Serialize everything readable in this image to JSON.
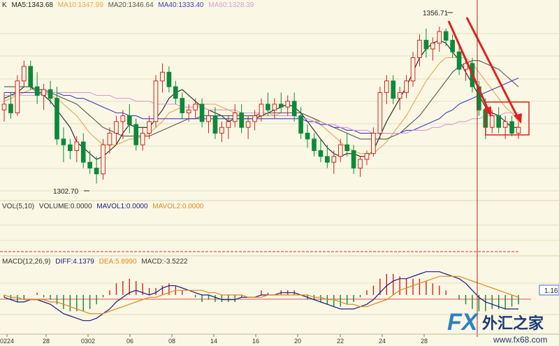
{
  "header": {
    "prefix": "K",
    "ma": [
      {
        "label": "MA5:1343.68",
        "color": "#1f1f1f"
      },
      {
        "label": "MA10:1347.99",
        "color": "#e8a54a"
      },
      {
        "label": "MA20:1346.64",
        "color": "#555555"
      },
      {
        "label": "MA40:1333.40",
        "color": "#3a3ad0"
      },
      {
        "label": "MA60:1328.39",
        "color": "#d79ad7"
      }
    ]
  },
  "price_annotations": {
    "high": "1356.71",
    "low": "1302.70"
  },
  "volume_header": [
    {
      "label": "VOL(5,10)",
      "color": "#333333"
    },
    {
      "label": "VOLUME:0.0000",
      "color": "#333333"
    },
    {
      "label": "MAVOL1:0.0000",
      "color": "#1a1a80"
    },
    {
      "label": "MAVOL2:0.0000",
      "color": "#e08a20"
    }
  ],
  "macd_header": [
    {
      "label": "MACD(12,26,9)",
      "color": "#333333"
    },
    {
      "label": "DIFF:4.1379",
      "color": "#1a1a80"
    },
    {
      "label": "DEA:5.8990",
      "color": "#e08a20"
    },
    {
      "label": "MACD:-3.5222",
      "color": "#333333"
    }
  ],
  "macd_value_tag": "1.16",
  "x_ticks": [
    "0224",
    "28",
    "0302",
    "06",
    "08",
    "14",
    "16",
    "20",
    "22",
    "24",
    "28"
  ],
  "watermark": {
    "fx": "FX",
    "cn": "外汇之家",
    "url": "www.fx68.com"
  },
  "colors": {
    "up": "#d42020",
    "down": "#0a8a3a",
    "arrow": "#e02020",
    "cursor": "#b02020",
    "bg": "#faf8e4"
  },
  "chart_data": {
    "type": "candlestick",
    "ylim": [
      1298,
      1362
    ],
    "candles": [
      {
        "o": 1328,
        "h": 1334,
        "l": 1324,
        "c": 1330
      },
      {
        "o": 1330,
        "h": 1334,
        "l": 1325,
        "c": 1327
      },
      {
        "o": 1327,
        "h": 1340,
        "l": 1326,
        "c": 1338
      },
      {
        "o": 1338,
        "h": 1345,
        "l": 1336,
        "c": 1343
      },
      {
        "o": 1343,
        "h": 1345,
        "l": 1335,
        "c": 1336
      },
      {
        "o": 1336,
        "h": 1341,
        "l": 1330,
        "c": 1333
      },
      {
        "o": 1333,
        "h": 1337,
        "l": 1328,
        "c": 1335
      },
      {
        "o": 1335,
        "h": 1338,
        "l": 1330,
        "c": 1332
      },
      {
        "o": 1332,
        "h": 1336,
        "l": 1316,
        "c": 1318
      },
      {
        "o": 1318,
        "h": 1322,
        "l": 1310,
        "c": 1316
      },
      {
        "o": 1316,
        "h": 1318,
        "l": 1311,
        "c": 1314
      },
      {
        "o": 1314,
        "h": 1319,
        "l": 1310,
        "c": 1317
      },
      {
        "o": 1317,
        "h": 1320,
        "l": 1308,
        "c": 1310
      },
      {
        "o": 1310,
        "h": 1314,
        "l": 1306,
        "c": 1308
      },
      {
        "o": 1308,
        "h": 1312,
        "l": 1302.7,
        "c": 1306
      },
      {
        "o": 1306,
        "h": 1318,
        "l": 1304,
        "c": 1316
      },
      {
        "o": 1316,
        "h": 1322,
        "l": 1313,
        "c": 1320
      },
      {
        "o": 1320,
        "h": 1326,
        "l": 1316,
        "c": 1324
      },
      {
        "o": 1324,
        "h": 1328,
        "l": 1318,
        "c": 1326
      },
      {
        "o": 1326,
        "h": 1330,
        "l": 1320,
        "c": 1323
      },
      {
        "o": 1323,
        "h": 1325,
        "l": 1314,
        "c": 1316
      },
      {
        "o": 1316,
        "h": 1322,
        "l": 1314,
        "c": 1320
      },
      {
        "o": 1320,
        "h": 1326,
        "l": 1318,
        "c": 1324
      },
      {
        "o": 1324,
        "h": 1340,
        "l": 1322,
        "c": 1338
      },
      {
        "o": 1338,
        "h": 1344,
        "l": 1334,
        "c": 1341
      },
      {
        "o": 1341,
        "h": 1343,
        "l": 1334,
        "c": 1336
      },
      {
        "o": 1336,
        "h": 1338,
        "l": 1330,
        "c": 1332
      },
      {
        "o": 1332,
        "h": 1334,
        "l": 1325,
        "c": 1327
      },
      {
        "o": 1327,
        "h": 1330,
        "l": 1324,
        "c": 1328
      },
      {
        "o": 1328,
        "h": 1332,
        "l": 1325,
        "c": 1330
      },
      {
        "o": 1330,
        "h": 1332,
        "l": 1322,
        "c": 1324
      },
      {
        "o": 1324,
        "h": 1328,
        "l": 1320,
        "c": 1326
      },
      {
        "o": 1326,
        "h": 1329,
        "l": 1318,
        "c": 1320
      },
      {
        "o": 1320,
        "h": 1324,
        "l": 1317,
        "c": 1322
      },
      {
        "o": 1322,
        "h": 1326,
        "l": 1318,
        "c": 1324
      },
      {
        "o": 1324,
        "h": 1330,
        "l": 1322,
        "c": 1327
      },
      {
        "o": 1327,
        "h": 1330,
        "l": 1320,
        "c": 1322
      },
      {
        "o": 1322,
        "h": 1326,
        "l": 1318,
        "c": 1324
      },
      {
        "o": 1324,
        "h": 1328,
        "l": 1321,
        "c": 1326
      },
      {
        "o": 1326,
        "h": 1332,
        "l": 1324,
        "c": 1330
      },
      {
        "o": 1330,
        "h": 1334,
        "l": 1326,
        "c": 1328
      },
      {
        "o": 1328,
        "h": 1332,
        "l": 1325,
        "c": 1330
      },
      {
        "o": 1330,
        "h": 1334,
        "l": 1327,
        "c": 1329
      },
      {
        "o": 1329,
        "h": 1333,
        "l": 1326,
        "c": 1331
      },
      {
        "o": 1331,
        "h": 1334,
        "l": 1324,
        "c": 1326
      },
      {
        "o": 1326,
        "h": 1329,
        "l": 1318,
        "c": 1320
      },
      {
        "o": 1320,
        "h": 1323,
        "l": 1315,
        "c": 1318
      },
      {
        "o": 1318,
        "h": 1320,
        "l": 1312,
        "c": 1314
      },
      {
        "o": 1314,
        "h": 1318,
        "l": 1310,
        "c": 1312
      },
      {
        "o": 1312,
        "h": 1316,
        "l": 1308,
        "c": 1310
      },
      {
        "o": 1310,
        "h": 1314,
        "l": 1306,
        "c": 1312
      },
      {
        "o": 1312,
        "h": 1318,
        "l": 1310,
        "c": 1316
      },
      {
        "o": 1316,
        "h": 1320,
        "l": 1312,
        "c": 1314
      },
      {
        "o": 1314,
        "h": 1316,
        "l": 1306,
        "c": 1308
      },
      {
        "o": 1308,
        "h": 1312,
        "l": 1305,
        "c": 1311
      },
      {
        "o": 1311,
        "h": 1314,
        "l": 1309,
        "c": 1313
      },
      {
        "o": 1313,
        "h": 1322,
        "l": 1312,
        "c": 1320
      },
      {
        "o": 1320,
        "h": 1336,
        "l": 1318,
        "c": 1334
      },
      {
        "o": 1334,
        "h": 1340,
        "l": 1330,
        "c": 1338
      },
      {
        "o": 1338,
        "h": 1340,
        "l": 1330,
        "c": 1332
      },
      {
        "o": 1332,
        "h": 1336,
        "l": 1328,
        "c": 1334
      },
      {
        "o": 1334,
        "h": 1340,
        "l": 1332,
        "c": 1338
      },
      {
        "o": 1338,
        "h": 1348,
        "l": 1336,
        "c": 1346
      },
      {
        "o": 1346,
        "h": 1354,
        "l": 1343,
        "c": 1352
      },
      {
        "o": 1352,
        "h": 1356,
        "l": 1346,
        "c": 1349
      },
      {
        "o": 1349,
        "h": 1353,
        "l": 1345,
        "c": 1351
      },
      {
        "o": 1351,
        "h": 1356.71,
        "l": 1348,
        "c": 1355
      },
      {
        "o": 1355,
        "h": 1356,
        "l": 1350,
        "c": 1352
      },
      {
        "o": 1352,
        "h": 1354,
        "l": 1346,
        "c": 1348
      },
      {
        "o": 1348,
        "h": 1350,
        "l": 1340,
        "c": 1342
      },
      {
        "o": 1342,
        "h": 1346,
        "l": 1338,
        "c": 1344
      },
      {
        "o": 1344,
        "h": 1346,
        "l": 1334,
        "c": 1336
      },
      {
        "o": 1336,
        "h": 1338,
        "l": 1326,
        "c": 1328
      },
      {
        "o": 1328,
        "h": 1332,
        "l": 1318,
        "c": 1322
      },
      {
        "o": 1322,
        "h": 1328,
        "l": 1320,
        "c": 1326
      },
      {
        "o": 1326,
        "h": 1329,
        "l": 1320,
        "c": 1322
      },
      {
        "o": 1322,
        "h": 1326,
        "l": 1318,
        "c": 1324
      },
      {
        "o": 1324,
        "h": 1326,
        "l": 1319,
        "c": 1320
      },
      {
        "o": 1320,
        "h": 1324,
        "l": 1318,
        "c": 1322
      }
    ],
    "ma_lines": [
      {
        "name": "MA5",
        "color": "#1f1f1f",
        "values": [
          1332,
          1333,
          1334,
          1336,
          1336,
          1334,
          1333,
          1331,
          1328,
          1325,
          1322,
          1317,
          1315,
          1313,
          1311,
          1312,
          1314,
          1316,
          1320,
          1323,
          1322,
          1322,
          1322,
          1325,
          1328,
          1332,
          1334,
          1335,
          1333,
          1331,
          1329,
          1328,
          1327,
          1326,
          1324,
          1325,
          1325,
          1325,
          1325,
          1326,
          1327,
          1328,
          1329,
          1330,
          1329,
          1327,
          1324,
          1321,
          1318,
          1315,
          1313,
          1312,
          1313,
          1313,
          1312,
          1312,
          1314,
          1319,
          1324,
          1328,
          1332,
          1336,
          1341,
          1346,
          1349,
          1351,
          1352,
          1351,
          1348,
          1345,
          1341,
          1337,
          1333,
          1329,
          1327,
          1326,
          1324,
          1322,
          1322
        ]
      },
      {
        "name": "MA10",
        "color": "#e8a54a",
        "values": [
          1331,
          1332,
          1333,
          1334,
          1335,
          1335,
          1334,
          1333,
          1332,
          1330,
          1328,
          1326,
          1323,
          1320,
          1318,
          1316,
          1316,
          1316,
          1317,
          1318,
          1318,
          1319,
          1320,
          1322,
          1324,
          1327,
          1328,
          1329,
          1329,
          1329,
          1330,
          1330,
          1330,
          1329,
          1328,
          1327,
          1326,
          1326,
          1326,
          1326,
          1326,
          1326,
          1327,
          1327,
          1327,
          1327,
          1326,
          1325,
          1323,
          1321,
          1319,
          1317,
          1315,
          1314,
          1313,
          1313,
          1313,
          1315,
          1317,
          1320,
          1323,
          1326,
          1330,
          1334,
          1338,
          1341,
          1344,
          1346,
          1346,
          1346,
          1346,
          1344,
          1341,
          1338,
          1335,
          1332,
          1329,
          1327,
          1324
        ]
      },
      {
        "name": "MA20",
        "color": "#555555",
        "values": [
          1336,
          1336,
          1336,
          1336,
          1336,
          1335,
          1335,
          1334,
          1333,
          1332,
          1331,
          1330,
          1328,
          1326,
          1324,
          1322,
          1321,
          1320,
          1319,
          1319,
          1319,
          1319,
          1319,
          1320,
          1321,
          1322,
          1323,
          1324,
          1325,
          1325,
          1326,
          1326,
          1326,
          1326,
          1326,
          1326,
          1326,
          1326,
          1326,
          1327,
          1327,
          1327,
          1327,
          1327,
          1327,
          1327,
          1326,
          1325,
          1324,
          1323,
          1322,
          1321,
          1320,
          1319,
          1318,
          1318,
          1318,
          1318,
          1318,
          1319,
          1320,
          1322,
          1324,
          1326,
          1329,
          1332,
          1335,
          1338,
          1341,
          1343,
          1344,
          1345,
          1345,
          1344,
          1343,
          1342,
          1340,
          1338,
          1336
        ]
      },
      {
        "name": "MA40",
        "color": "#3a3ad0",
        "values": [
          1334,
          1334,
          1334,
          1334,
          1334,
          1334,
          1334,
          1334,
          1334,
          1333,
          1333,
          1332,
          1332,
          1331,
          1330,
          1329,
          1328,
          1327,
          1327,
          1326,
          1326,
          1325,
          1325,
          1325,
          1325,
          1325,
          1325,
          1325,
          1325,
          1325,
          1325,
          1325,
          1325,
          1325,
          1325,
          1325,
          1325,
          1325,
          1325,
          1325,
          1325,
          1325,
          1325,
          1325,
          1325,
          1325,
          1324,
          1324,
          1323,
          1323,
          1322,
          1322,
          1321,
          1321,
          1320,
          1320,
          1320,
          1320,
          1320,
          1320,
          1320,
          1321,
          1321,
          1322,
          1323,
          1324,
          1325,
          1327,
          1328,
          1330,
          1331,
          1332,
          1333,
          1334,
          1335,
          1336,
          1337,
          1338,
          1339
        ]
      },
      {
        "name": "MA60",
        "color": "#d79ad7",
        "values": [
          1333,
          1333,
          1333,
          1333,
          1333,
          1333,
          1334,
          1334,
          1334,
          1334,
          1334,
          1334,
          1334,
          1334,
          1333,
          1333,
          1333,
          1332,
          1332,
          1332,
          1331,
          1331,
          1331,
          1330,
          1330,
          1330,
          1330,
          1329,
          1329,
          1329,
          1329,
          1328,
          1328,
          1328,
          1328,
          1328,
          1327,
          1327,
          1327,
          1327,
          1327,
          1326,
          1326,
          1326,
          1326,
          1325,
          1325,
          1324,
          1324,
          1323,
          1323,
          1322,
          1322,
          1321,
          1321,
          1321,
          1320,
          1320,
          1320,
          1320,
          1320,
          1320,
          1321,
          1321,
          1321,
          1322,
          1322,
          1323,
          1323,
          1324,
          1324,
          1325,
          1325,
          1326,
          1326,
          1326,
          1327,
          1327,
          1327
        ]
      }
    ],
    "macd": {
      "ylim": [
        -12,
        12
      ],
      "diff": [
        -1,
        -2,
        -3,
        -3,
        -2,
        -2,
        -3,
        -4,
        -6,
        -8,
        -9,
        -10,
        -11,
        -11,
        -10,
        -8,
        -6,
        -3,
        -1,
        1,
        2,
        1,
        0,
        1,
        3,
        4,
        4,
        3,
        2,
        1,
        0,
        0,
        -1,
        -2,
        -2,
        -2,
        -1,
        -1,
        -1,
        0,
        0,
        0,
        1,
        1,
        1,
        0,
        -1,
        -2,
        -3,
        -4,
        -5,
        -6,
        -6,
        -6,
        -5,
        -4,
        -2,
        1,
        4,
        6,
        7,
        7,
        8,
        9,
        10,
        10,
        10,
        9,
        8,
        7,
        5,
        2,
        -1,
        -3,
        -4,
        -5,
        -6,
        -6,
        -6
      ],
      "dea": [
        0,
        -1,
        -1,
        -2,
        -2,
        -2,
        -2,
        -3,
        -3,
        -4,
        -5,
        -6,
        -7,
        -8,
        -8,
        -8,
        -7,
        -6,
        -5,
        -4,
        -3,
        -2,
        -1,
        -1,
        0,
        1,
        2,
        2,
        2,
        2,
        2,
        1,
        1,
        0,
        0,
        0,
        0,
        -1,
        -1,
        -1,
        0,
        0,
        0,
        0,
        0,
        0,
        0,
        -1,
        -1,
        -2,
        -2,
        -3,
        -4,
        -4,
        -5,
        -5,
        -4,
        -3,
        -2,
        0,
        2,
        3,
        4,
        5,
        6,
        7,
        8,
        8,
        8,
        8,
        7,
        6,
        5,
        4,
        3,
        2,
        1,
        0,
        -1
      ],
      "hist": [
        -1,
        -2,
        -3,
        -2,
        0,
        1,
        -1,
        -2,
        -4,
        -6,
        -7,
        -7,
        -7,
        -6,
        -4,
        -1,
        2,
        5,
        6,
        7,
        6,
        5,
        3,
        3,
        4,
        5,
        4,
        2,
        0,
        -1,
        -3,
        -2,
        -3,
        -3,
        -3,
        -3,
        -1,
        0,
        0,
        2,
        1,
        0,
        2,
        2,
        2,
        0,
        -2,
        -2,
        -3,
        -4,
        -5,
        -5,
        -4,
        -3,
        -1,
        2,
        4,
        7,
        9,
        9,
        8,
        7,
        7,
        7,
        6,
        5,
        4,
        2,
        0,
        -2,
        -4,
        -6,
        -7,
        -7,
        -6,
        -6,
        -6,
        -5,
        -4
      ]
    }
  }
}
